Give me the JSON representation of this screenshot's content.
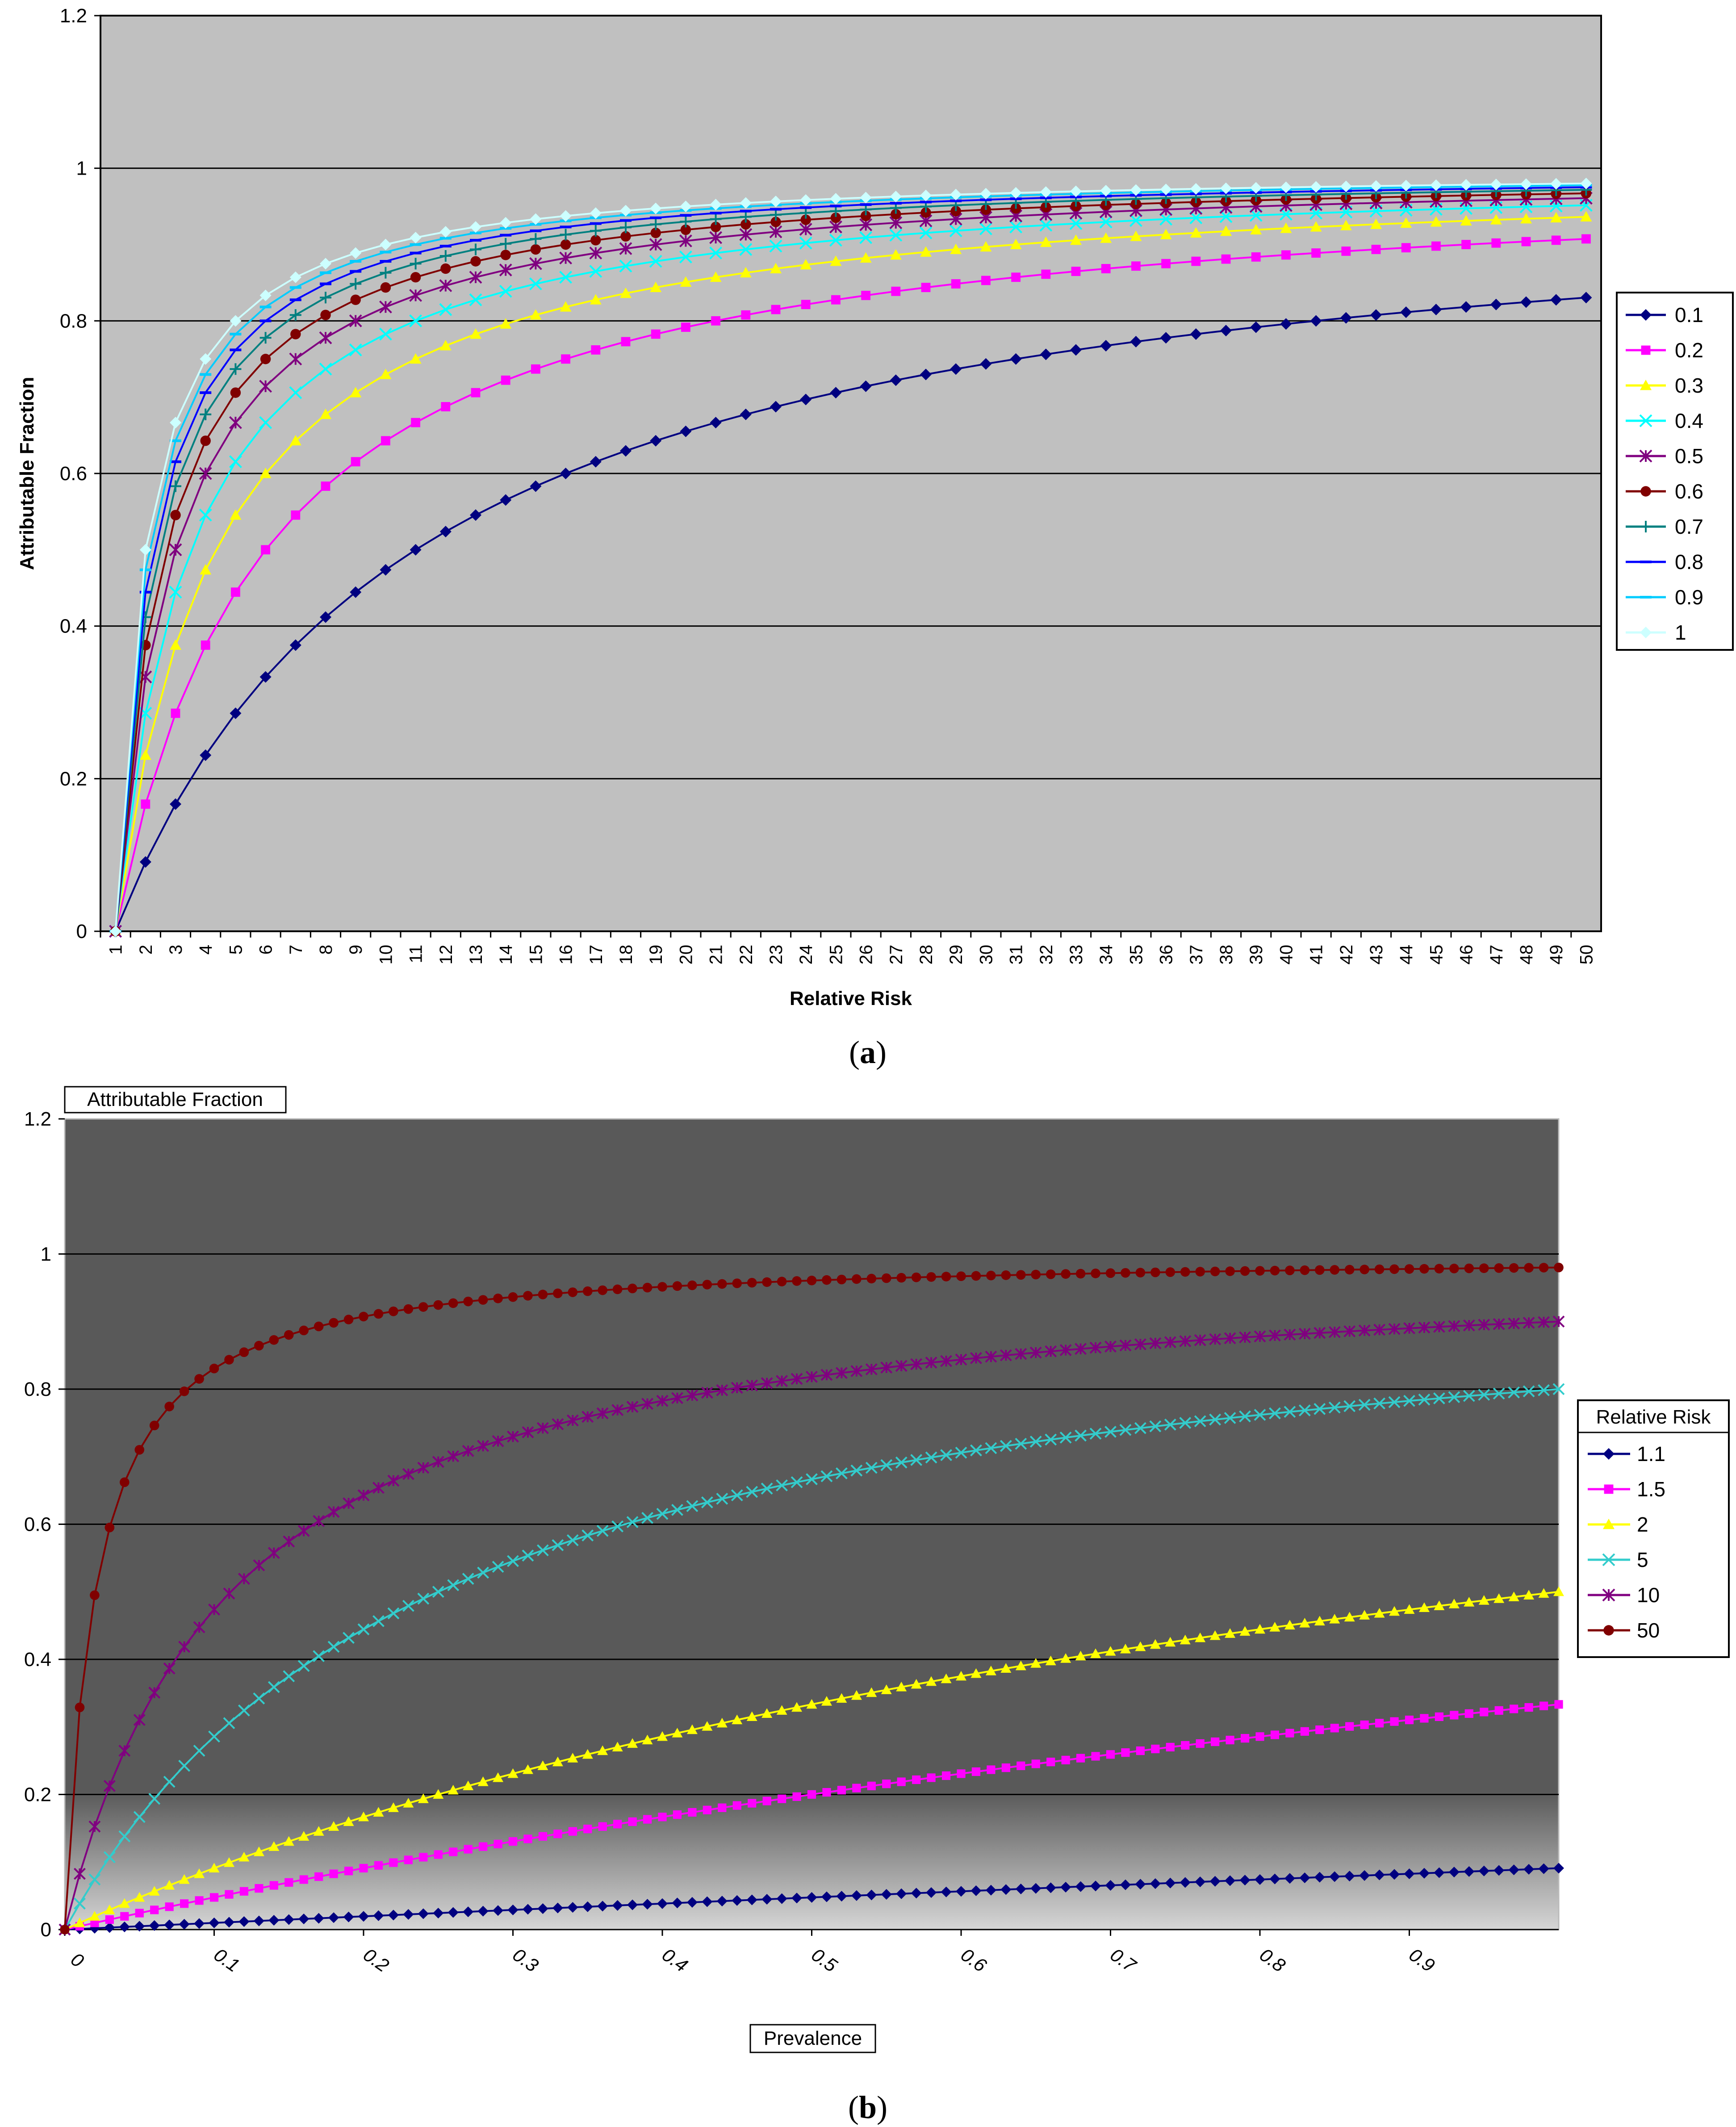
{
  "chart_data": [
    {
      "type": "line",
      "panel_label": "(a)",
      "panel_letter": "a",
      "xlabel": "Relative Risk",
      "ylabel": "Attributable Fraction",
      "ylim": [
        0,
        1.2
      ],
      "yticks": [
        "0",
        "0.2",
        "0.4",
        "0.6",
        "0.8",
        "1",
        "1.2"
      ],
      "x": [
        1,
        2,
        3,
        4,
        5,
        6,
        7,
        8,
        9,
        10,
        11,
        12,
        13,
        14,
        15,
        16,
        17,
        18,
        19,
        20,
        21,
        22,
        23,
        24,
        25,
        26,
        27,
        28,
        29,
        30,
        31,
        32,
        33,
        34,
        35,
        36,
        37,
        38,
        39,
        40,
        41,
        42,
        43,
        44,
        45,
        46,
        47,
        48,
        49,
        50
      ],
      "formula_note": "",
      "grid": true,
      "legend_position": "right",
      "background": "#c0c0c0",
      "series": [
        {
          "name": "0.1",
          "p": 0.1,
          "color": "#000080",
          "marker": "diamond"
        },
        {
          "name": "0.2",
          "p": 0.2,
          "color": "#ff00ff",
          "marker": "square"
        },
        {
          "name": "0.3",
          "p": 0.3,
          "color": "#ffff00",
          "marker": "triangle"
        },
        {
          "name": "0.4",
          "p": 0.4,
          "color": "#00ffff",
          "marker": "x"
        },
        {
          "name": "0.5",
          "p": 0.5,
          "color": "#800080",
          "marker": "star"
        },
        {
          "name": "0.6",
          "p": 0.6,
          "color": "#800000",
          "marker": "circle"
        },
        {
          "name": "0.7",
          "p": 0.7,
          "color": "#008080",
          "marker": "plus"
        },
        {
          "name": "0.8",
          "p": 0.8,
          "color": "#0000ff",
          "marker": "dash"
        },
        {
          "name": "0.9",
          "p": 0.9,
          "color": "#00ccff",
          "marker": "dash"
        },
        {
          "name": "1",
          "p": 1.0,
          "color": "#ccffff",
          "marker": "diamond"
        }
      ]
    },
    {
      "type": "line",
      "panel_label": "(b)",
      "panel_letter": "b",
      "title": "Attributable Fraction",
      "xlabel": "Prevalence",
      "ylim": [
        0,
        1.2
      ],
      "yticks": [
        "0",
        "0.2",
        "0.4",
        "0.6",
        "0.8",
        "1",
        "1.2"
      ],
      "xticks": [
        "0",
        "0.1",
        "0.2",
        "0.3",
        "0.4",
        "0.5",
        "0.6",
        "0.7",
        "0.8",
        "0.9"
      ],
      "x_range": [
        0,
        1.0
      ],
      "x_step": 0.01,
      "grid": true,
      "legend_title": "Relative Risk",
      "legend_position": "right",
      "background": "#595959",
      "series": [
        {
          "name": "1.1",
          "rr": 1.1,
          "color": "#000080",
          "marker": "diamond"
        },
        {
          "name": "1.5",
          "rr": 1.5,
          "color": "#ff00ff",
          "marker": "square"
        },
        {
          "name": "2",
          "rr": 2,
          "color": "#ffff00",
          "marker": "triangle"
        },
        {
          "name": "5",
          "rr": 5,
          "color": "#33cccc",
          "marker": "x"
        },
        {
          "name": "10",
          "rr": 10,
          "color": "#800080",
          "marker": "star"
        },
        {
          "name": "50",
          "rr": 50,
          "color": "#800000",
          "marker": "circle"
        }
      ]
    }
  ]
}
